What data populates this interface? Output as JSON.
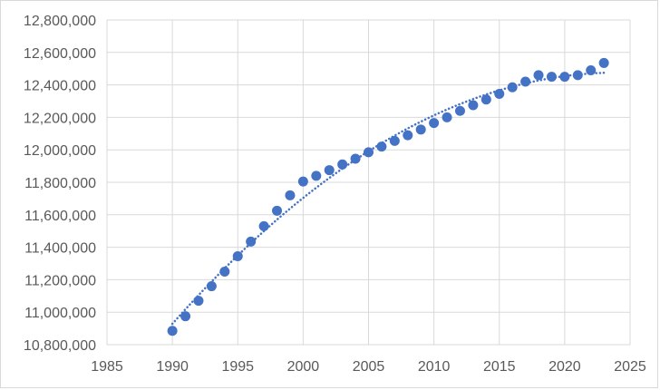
{
  "chart_data": {
    "type": "scatter",
    "title": "",
    "xlabel": "",
    "ylabel": "",
    "xlim": [
      1985,
      2025
    ],
    "ylim": [
      10800000,
      12800000
    ],
    "x_ticks": [
      1985,
      1990,
      1995,
      2000,
      2005,
      2010,
      2015,
      2020,
      2025
    ],
    "x_tick_labels": [
      "1985",
      "1990",
      "1995",
      "2000",
      "2005",
      "2010",
      "2015",
      "2020",
      "2025"
    ],
    "y_ticks": [
      10800000,
      11000000,
      11200000,
      11400000,
      11600000,
      11800000,
      12000000,
      12200000,
      12400000,
      12600000,
      12800000
    ],
    "y_tick_labels": [
      "10,800,000",
      "11,000,000",
      "11,200,000",
      "11,400,000",
      "11,600,000",
      "11,800,000",
      "12,000,000",
      "12,200,000",
      "12,400,000",
      "12,600,000",
      "12,800,000"
    ],
    "grid": true,
    "legend": "none",
    "series": [
      {
        "color": "#4472c4",
        "x": [
          1990,
          1991,
          1992,
          1993,
          1994,
          1995,
          1996,
          1997,
          1998,
          1999,
          2000,
          2001,
          2002,
          2003,
          2004,
          2005,
          2006,
          2007,
          2008,
          2009,
          2010,
          2011,
          2012,
          2013,
          2014,
          2015,
          2016,
          2017,
          2018,
          2019,
          2020,
          2021,
          2022,
          2023
        ],
        "y": [
          10885000,
          10975000,
          11070000,
          11160000,
          11250000,
          11345000,
          11435000,
          11530000,
          11625000,
          11720000,
          11805000,
          11840000,
          11875000,
          11910000,
          11945000,
          11985000,
          12020000,
          12055000,
          12090000,
          12125000,
          12165000,
          12200000,
          12240000,
          12275000,
          12310000,
          12345000,
          12385000,
          12420000,
          12460000,
          12450000,
          12450000,
          12460000,
          12490000,
          12535000
        ]
      }
    ],
    "trendline": {
      "style": "dotted",
      "type": "polynomial",
      "color": "#4472c4",
      "x_range": [
        1990,
        2023
      ]
    }
  }
}
